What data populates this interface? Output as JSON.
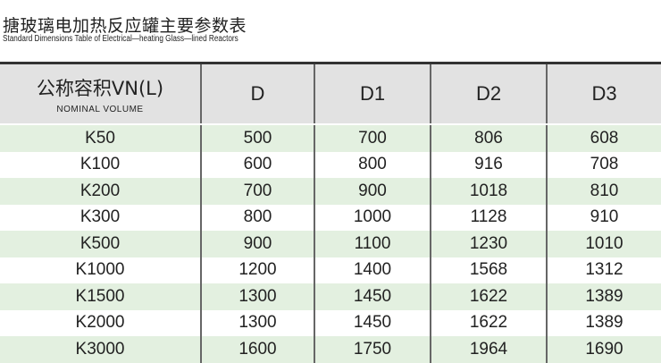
{
  "title_cn": "搪玻璃电加热反应罐主要参数表",
  "title_en": "Standard Dimensions Table of Electrical—heating Glass—lined Reactors",
  "colors": {
    "header_bg": "#e2e2e2",
    "stripe_bg": "#e3f0e0"
  },
  "headers": {
    "volume_cn": "公称容积VN(L)",
    "volume_en": "NOMINAL VOLUME",
    "cols": [
      "D",
      "D1",
      "D2",
      "D3"
    ]
  },
  "rows": [
    [
      "K50",
      "500",
      "700",
      "806",
      "608"
    ],
    [
      "K100",
      "600",
      "800",
      "916",
      "708"
    ],
    [
      "K200",
      "700",
      "900",
      "1018",
      "810"
    ],
    [
      "K300",
      "800",
      "1000",
      "1128",
      "910"
    ],
    [
      "K500",
      "900",
      "1100",
      "1230",
      "1010"
    ],
    [
      "K1000",
      "1200",
      "1400",
      "1568",
      "1312"
    ],
    [
      "K1500",
      "1300",
      "1450",
      "1622",
      "1389"
    ],
    [
      "K2000",
      "1300",
      "1450",
      "1622",
      "1389"
    ],
    [
      "K3000",
      "1600",
      "1750",
      "1964",
      "1690"
    ]
  ]
}
